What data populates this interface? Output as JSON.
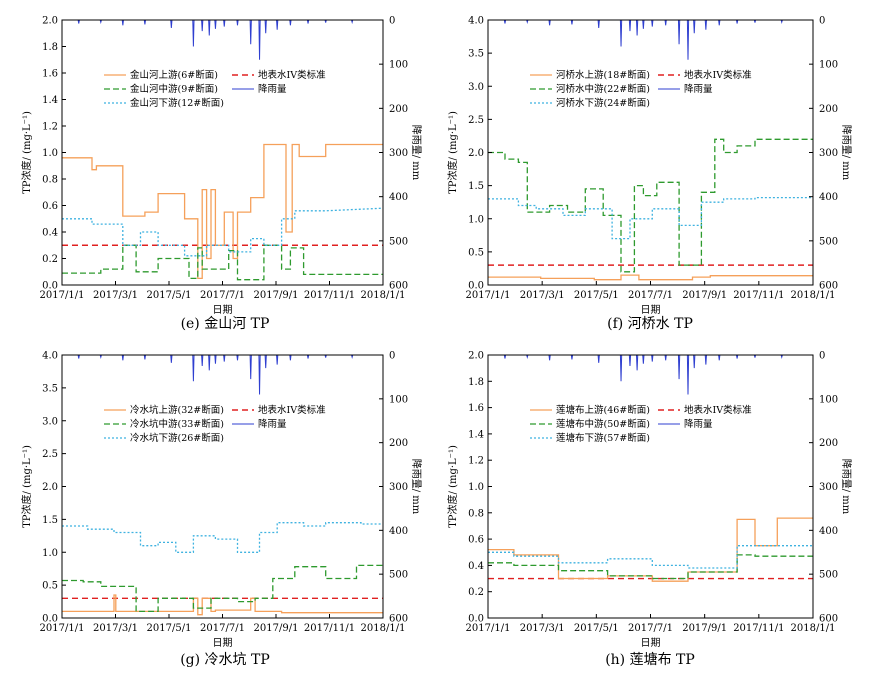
{
  "figure": {
    "shared": {
      "xlabel": "日期",
      "ylabel": "TP浓度/ (mg·L⁻¹)",
      "y2label": "降雨量/ mm",
      "xticks": [
        "2017/1/1",
        "2017/3/1",
        "2017/5/1",
        "2017/7/1",
        "2017/9/1",
        "2017/11/1",
        "2018/1/1"
      ],
      "y2ticks": [
        "0",
        "100",
        "200",
        "300",
        "400",
        "500",
        "600"
      ],
      "standard_label": "地表水IV类标准",
      "rain_label": "降雨量"
    },
    "colors": {
      "upstream": "#f5a05a",
      "midstream": "#2e9a2e",
      "downstream": "#3fb2e0",
      "standard": "#e02020",
      "rain": "#2f3fd0"
    }
  },
  "chart_data": [
    {
      "type": "line",
      "caption": "(e)  金山河 TP",
      "ylim": [
        0,
        2.0
      ],
      "yticks": [
        "0.0",
        "0.2",
        "0.4",
        "0.6",
        "0.8",
        "1.0",
        "1.2",
        "1.4",
        "1.6",
        "1.8",
        "2.0"
      ],
      "y2lim": [
        0,
        600
      ],
      "standard": 0.3,
      "series": [
        {
          "name": "金山河上游(6#断面)",
          "role": "upstream",
          "x": [
            1,
            35,
            35,
            40,
            40,
            70,
            70,
            95,
            95,
            110,
            110,
            140,
            140,
            155,
            155,
            160,
            160,
            165,
            165,
            170,
            170,
            175,
            175,
            185,
            185,
            195,
            195,
            200,
            200,
            215,
            215,
            230,
            230,
            255,
            255,
            262,
            262,
            270,
            270,
            275,
            275,
            300,
            300,
            365
          ],
          "y": [
            0.96,
            0.96,
            0.87,
            0.87,
            0.9,
            0.9,
            0.52,
            0.52,
            0.55,
            0.55,
            0.69,
            0.69,
            0.5,
            0.5,
            0.05,
            0.05,
            0.72,
            0.72,
            0.2,
            0.2,
            0.72,
            0.72,
            0.3,
            0.3,
            0.55,
            0.55,
            0.2,
            0.2,
            0.55,
            0.55,
            0.66,
            0.66,
            1.06,
            1.06,
            0.4,
            0.4,
            1.06,
            1.06,
            0.97,
            0.97,
            0.97,
            0.97,
            1.06,
            1.06
          ]
        },
        {
          "name": "金山河中游(9#断面)",
          "role": "midstream",
          "x": [
            1,
            45,
            45,
            70,
            70,
            85,
            85,
            110,
            110,
            145,
            145,
            155,
            155,
            160,
            160,
            190,
            190,
            200,
            200,
            230,
            230,
            250,
            250,
            260,
            260,
            275,
            275,
            300,
            300,
            365
          ],
          "y": [
            0.09,
            0.09,
            0.12,
            0.12,
            0.3,
            0.3,
            0.1,
            0.1,
            0.2,
            0.2,
            0.05,
            0.05,
            0.28,
            0.28,
            0.12,
            0.12,
            0.26,
            0.26,
            0.04,
            0.04,
            0.3,
            0.3,
            0.12,
            0.12,
            0.28,
            0.28,
            0.08,
            0.08,
            0.08,
            0.08
          ]
        },
        {
          "name": "金山河下游(12#断面)",
          "role": "downstream",
          "x": [
            1,
            35,
            35,
            70,
            70,
            90,
            90,
            110,
            110,
            140,
            140,
            165,
            165,
            190,
            190,
            215,
            215,
            230,
            230,
            250,
            250,
            265,
            265,
            300,
            300,
            365
          ],
          "y": [
            0.5,
            0.5,
            0.46,
            0.46,
            0.3,
            0.3,
            0.4,
            0.4,
            0.3,
            0.3,
            0.22,
            0.22,
            0.3,
            0.3,
            0.25,
            0.25,
            0.35,
            0.35,
            0.3,
            0.3,
            0.5,
            0.5,
            0.56,
            0.56,
            0.56,
            0.58
          ]
        }
      ],
      "rain_peaks": [
        [
          20,
          8
        ],
        [
          45,
          5
        ],
        [
          70,
          12
        ],
        [
          95,
          10
        ],
        [
          125,
          18
        ],
        [
          150,
          60
        ],
        [
          160,
          25
        ],
        [
          168,
          35
        ],
        [
          175,
          20
        ],
        [
          185,
          15
        ],
        [
          200,
          12
        ],
        [
          215,
          55
        ],
        [
          225,
          90
        ],
        [
          232,
          30
        ],
        [
          245,
          22
        ],
        [
          260,
          12
        ],
        [
          280,
          8
        ],
        [
          300,
          6
        ],
        [
          330,
          5
        ]
      ]
    },
    {
      "type": "line",
      "caption": "(f)  河桥水 TP",
      "ylim": [
        0,
        4.0
      ],
      "yticks": [
        "0.0",
        "0.5",
        "1.0",
        "1.5",
        "2.0",
        "2.5",
        "3.0",
        "3.5",
        "4.0"
      ],
      "y2lim": [
        0,
        600
      ],
      "standard": 0.3,
      "series": [
        {
          "name": "河桥水上游(18#断面)",
          "role": "upstream",
          "x": [
            1,
            60,
            60,
            120,
            120,
            150,
            150,
            170,
            170,
            230,
            230,
            250,
            250,
            365
          ],
          "y": [
            0.12,
            0.12,
            0.1,
            0.1,
            0.08,
            0.08,
            0.15,
            0.15,
            0.08,
            0.08,
            0.12,
            0.12,
            0.14,
            0.14
          ]
        },
        {
          "name": "河桥水中游(22#断面)",
          "role": "midstream",
          "x": [
            1,
            20,
            20,
            35,
            35,
            45,
            45,
            70,
            70,
            90,
            90,
            110,
            110,
            130,
            130,
            150,
            150,
            165,
            165,
            175,
            175,
            190,
            190,
            215,
            215,
            240,
            240,
            255,
            255,
            265,
            265,
            280,
            280,
            300,
            300,
            365
          ],
          "y": [
            2.0,
            2.0,
            1.9,
            1.9,
            1.85,
            1.85,
            1.1,
            1.1,
            1.2,
            1.2,
            1.1,
            1.1,
            1.45,
            1.45,
            1.05,
            1.05,
            0.2,
            0.2,
            1.5,
            1.5,
            1.35,
            1.35,
            1.55,
            1.55,
            0.3,
            0.3,
            1.4,
            1.4,
            2.2,
            2.2,
            2.0,
            2.0,
            2.1,
            2.1,
            2.2,
            2.2
          ]
        },
        {
          "name": "河桥水下游(24#断面)",
          "role": "downstream",
          "x": [
            1,
            35,
            35,
            55,
            55,
            85,
            85,
            110,
            110,
            140,
            140,
            160,
            160,
            185,
            185,
            215,
            215,
            240,
            240,
            265,
            265,
            300,
            300,
            365
          ],
          "y": [
            1.3,
            1.3,
            1.2,
            1.2,
            1.15,
            1.15,
            1.05,
            1.05,
            1.15,
            1.15,
            0.7,
            0.7,
            1.0,
            1.0,
            1.15,
            1.15,
            0.9,
            0.9,
            1.25,
            1.25,
            1.3,
            1.3,
            1.32,
            1.32
          ]
        }
      ],
      "rain_peaks": [
        [
          20,
          8
        ],
        [
          45,
          5
        ],
        [
          70,
          12
        ],
        [
          95,
          10
        ],
        [
          125,
          18
        ],
        [
          150,
          60
        ],
        [
          160,
          25
        ],
        [
          168,
          35
        ],
        [
          175,
          20
        ],
        [
          185,
          15
        ],
        [
          200,
          12
        ],
        [
          215,
          55
        ],
        [
          225,
          90
        ],
        [
          232,
          30
        ],
        [
          245,
          22
        ],
        [
          260,
          12
        ],
        [
          280,
          8
        ],
        [
          300,
          6
        ],
        [
          330,
          5
        ]
      ]
    },
    {
      "type": "line",
      "caption": "(g)  冷水坑 TP",
      "ylim": [
        0,
        4.0
      ],
      "yticks": [
        "0.0",
        "0.5",
        "1.0",
        "1.5",
        "2.0",
        "2.5",
        "3.0",
        "3.5",
        "4.0"
      ],
      "y2lim": [
        0,
        600
      ],
      "standard": 0.3,
      "series": [
        {
          "name": "冷水坑上游(32#断面)",
          "role": "upstream",
          "x": [
            1,
            60,
            60,
            62,
            62,
            150,
            150,
            155,
            155,
            160,
            160,
            170,
            170,
            175,
            175,
            215,
            215,
            220,
            220,
            250,
            250,
            365
          ],
          "y": [
            0.1,
            0.1,
            0.35,
            0.35,
            0.1,
            0.1,
            0.3,
            0.3,
            0.05,
            0.05,
            0.3,
            0.3,
            0.1,
            0.1,
            0.12,
            0.12,
            0.3,
            0.3,
            0.1,
            0.1,
            0.08,
            0.08
          ]
        },
        {
          "name": "冷水坑中游(33#断面)",
          "role": "midstream",
          "x": [
            1,
            25,
            25,
            45,
            45,
            85,
            85,
            110,
            110,
            150,
            150,
            170,
            170,
            200,
            200,
            220,
            220,
            240,
            240,
            265,
            265,
            300,
            300,
            335,
            335,
            365
          ],
          "y": [
            0.57,
            0.57,
            0.55,
            0.55,
            0.48,
            0.48,
            0.1,
            0.1,
            0.3,
            0.3,
            0.15,
            0.15,
            0.3,
            0.3,
            0.25,
            0.25,
            0.3,
            0.3,
            0.6,
            0.6,
            0.78,
            0.78,
            0.6,
            0.6,
            0.8,
            0.8
          ]
        },
        {
          "name": "冷水坑下游(26#断面)",
          "role": "downstream",
          "x": [
            1,
            30,
            30,
            60,
            60,
            90,
            90,
            110,
            110,
            130,
            130,
            150,
            150,
            175,
            175,
            200,
            200,
            225,
            225,
            245,
            245,
            275,
            275,
            300,
            300,
            340,
            340,
            365
          ],
          "y": [
            1.4,
            1.4,
            1.35,
            1.35,
            1.3,
            1.3,
            1.1,
            1.1,
            1.15,
            1.15,
            1.0,
            1.0,
            1.25,
            1.25,
            1.2,
            1.2,
            1.0,
            1.0,
            1.3,
            1.3,
            1.45,
            1.45,
            1.4,
            1.4,
            1.45,
            1.45,
            1.43,
            1.43
          ]
        }
      ],
      "rain_peaks": [
        [
          20,
          8
        ],
        [
          45,
          5
        ],
        [
          70,
          12
        ],
        [
          95,
          10
        ],
        [
          125,
          18
        ],
        [
          150,
          60
        ],
        [
          160,
          25
        ],
        [
          168,
          35
        ],
        [
          175,
          20
        ],
        [
          185,
          15
        ],
        [
          200,
          12
        ],
        [
          215,
          55
        ],
        [
          225,
          90
        ],
        [
          232,
          30
        ],
        [
          245,
          22
        ],
        [
          260,
          12
        ],
        [
          280,
          8
        ],
        [
          300,
          6
        ],
        [
          330,
          5
        ]
      ]
    },
    {
      "type": "line",
      "caption": "(h)  莲塘布 TP",
      "ylim": [
        0,
        2.0
      ],
      "yticks": [
        "0.0",
        "0.2",
        "0.4",
        "0.6",
        "0.8",
        "1.0",
        "1.2",
        "1.4",
        "1.6",
        "1.8",
        "2.0"
      ],
      "y2lim": [
        0,
        600
      ],
      "standard": 0.3,
      "series": [
        {
          "name": "莲塘布上游(46#断面)",
          "role": "upstream",
          "x": [
            1,
            30,
            30,
            80,
            80,
            135,
            135,
            185,
            185,
            225,
            225,
            280,
            280,
            300,
            300,
            325,
            325,
            365
          ],
          "y": [
            0.52,
            0.52,
            0.48,
            0.48,
            0.3,
            0.3,
            0.32,
            0.32,
            0.28,
            0.28,
            0.35,
            0.35,
            0.75,
            0.75,
            0.55,
            0.55,
            0.76,
            0.76
          ]
        },
        {
          "name": "莲塘布中游(50#断面)",
          "role": "midstream",
          "x": [
            1,
            30,
            30,
            80,
            80,
            135,
            135,
            185,
            185,
            225,
            225,
            280,
            280,
            300,
            300,
            365
          ],
          "y": [
            0.42,
            0.42,
            0.4,
            0.4,
            0.36,
            0.36,
            0.32,
            0.32,
            0.3,
            0.3,
            0.35,
            0.35,
            0.48,
            0.48,
            0.47,
            0.47
          ]
        },
        {
          "name": "莲塘布下游(57#断面)",
          "role": "downstream",
          "x": [
            1,
            30,
            30,
            80,
            80,
            135,
            135,
            185,
            185,
            225,
            225,
            280,
            280,
            300,
            300,
            365
          ],
          "y": [
            0.5,
            0.5,
            0.47,
            0.47,
            0.42,
            0.42,
            0.45,
            0.45,
            0.4,
            0.4,
            0.38,
            0.38,
            0.55,
            0.55,
            0.55,
            0.55
          ]
        }
      ],
      "rain_peaks": [
        [
          20,
          8
        ],
        [
          45,
          5
        ],
        [
          70,
          12
        ],
        [
          95,
          10
        ],
        [
          125,
          18
        ],
        [
          150,
          60
        ],
        [
          160,
          25
        ],
        [
          168,
          35
        ],
        [
          175,
          20
        ],
        [
          185,
          15
        ],
        [
          200,
          12
        ],
        [
          215,
          55
        ],
        [
          225,
          90
        ],
        [
          232,
          30
        ],
        [
          245,
          22
        ],
        [
          260,
          12
        ],
        [
          280,
          8
        ],
        [
          300,
          6
        ],
        [
          330,
          5
        ]
      ]
    }
  ]
}
